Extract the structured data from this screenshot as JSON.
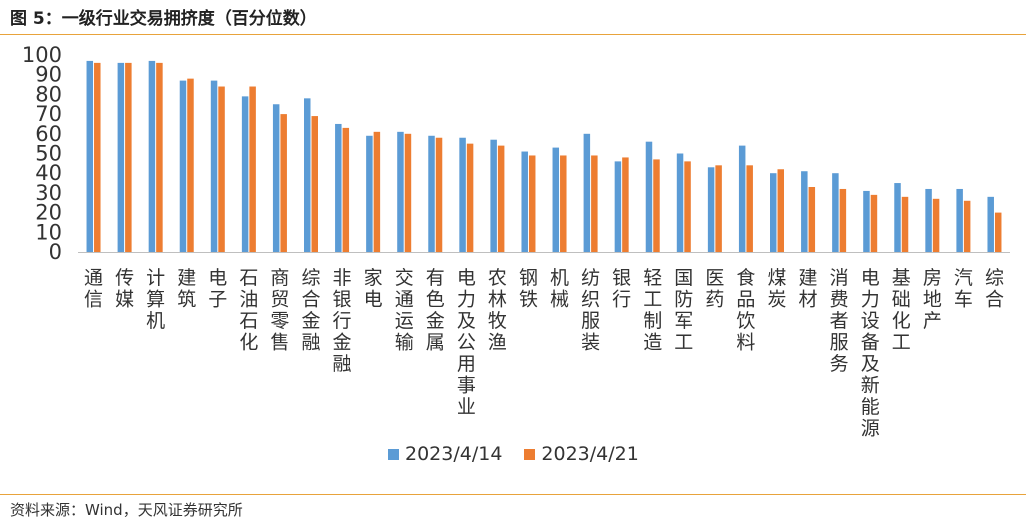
{
  "header": {
    "title": "图 5：一级行业交易拥挤度（百分位数）"
  },
  "footer": {
    "source": "资料来源：Wind，天风证券研究所"
  },
  "colors": {
    "series1": "#5b9bd5",
    "series2": "#ed7d31",
    "rule": "#e8a33b"
  },
  "chart_data": {
    "type": "bar",
    "ylim": [
      0,
      100
    ],
    "yticks": [
      0,
      10,
      20,
      30,
      40,
      50,
      60,
      70,
      80,
      90,
      100
    ],
    "grid": false,
    "legend_position": "bottom",
    "categories": [
      "通信",
      "传媒",
      "计算机",
      "建筑",
      "电子",
      "石油石化",
      "商贸零售",
      "综合金融",
      "非银行金融",
      "家电",
      "交通运输",
      "有色金属",
      "电力及公用事业",
      "农林牧渔",
      "钢铁",
      "机械",
      "纺织服装",
      "银行",
      "轻工制造",
      "国防军工",
      "医药",
      "食品饮料",
      "煤炭",
      "建材",
      "消费者服务",
      "电力设备及新能源",
      "基础化工",
      "房地产",
      "汽车",
      "综合"
    ],
    "series": [
      {
        "name": "2023/4/14",
        "values": [
          97,
          96,
          97,
          87,
          87,
          79,
          75,
          78,
          65,
          59,
          61,
          59,
          58,
          57,
          51,
          53,
          60,
          46,
          56,
          50,
          43,
          54,
          40,
          41,
          40,
          31,
          35,
          32,
          32,
          28
        ]
      },
      {
        "name": "2023/4/21",
        "values": [
          96,
          96,
          96,
          88,
          84,
          84,
          70,
          69,
          63,
          61,
          60,
          58,
          55,
          54,
          49,
          49,
          49,
          48,
          47,
          46,
          44,
          44,
          42,
          33,
          32,
          29,
          28,
          27,
          26,
          20
        ]
      }
    ]
  }
}
